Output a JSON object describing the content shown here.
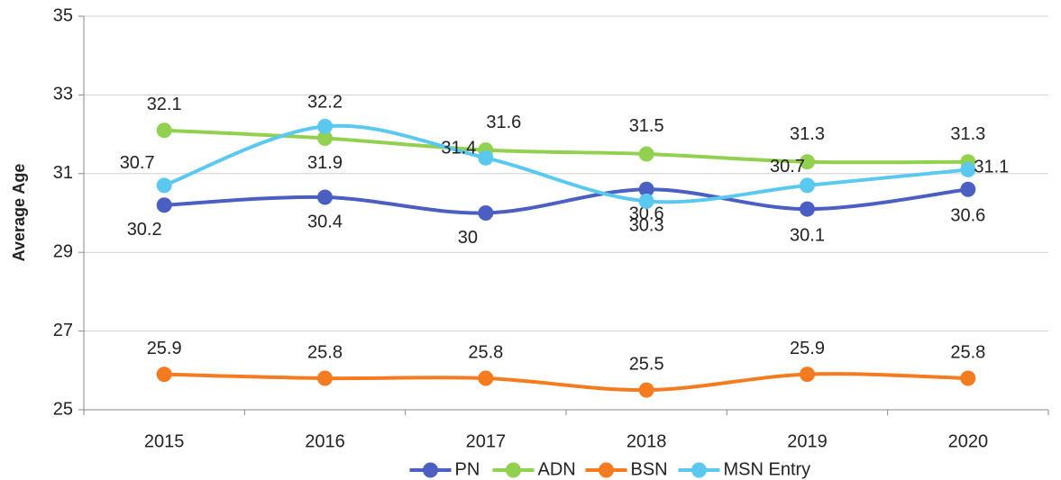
{
  "chart_data": {
    "type": "line",
    "y_label": "Average Age",
    "categories": [
      "2015",
      "2016",
      "2017",
      "2018",
      "2019",
      "2020"
    ],
    "series": [
      {
        "name": "PN",
        "color": "#4a5fc1",
        "values": [
          30.2,
          30.4,
          30,
          30.6,
          30.1,
          30.6
        ]
      },
      {
        "name": "ADN",
        "color": "#92d050",
        "values": [
          32.1,
          31.9,
          31.6,
          31.5,
          31.3,
          31.3
        ]
      },
      {
        "name": "BSN",
        "color": "#f47b20",
        "values": [
          25.9,
          25.8,
          25.8,
          25.5,
          25.9,
          25.8
        ]
      },
      {
        "name": "MSN Entry",
        "color": "#5bc8ef",
        "values": [
          30.7,
          32.2,
          31.4,
          30.3,
          30.7,
          31.1
        ]
      }
    ],
    "ylim": [
      25,
      35
    ],
    "yticks": [
      25,
      27,
      29,
      31,
      33,
      35
    ],
    "grid": true,
    "smooth": true,
    "legend": "bottom"
  }
}
